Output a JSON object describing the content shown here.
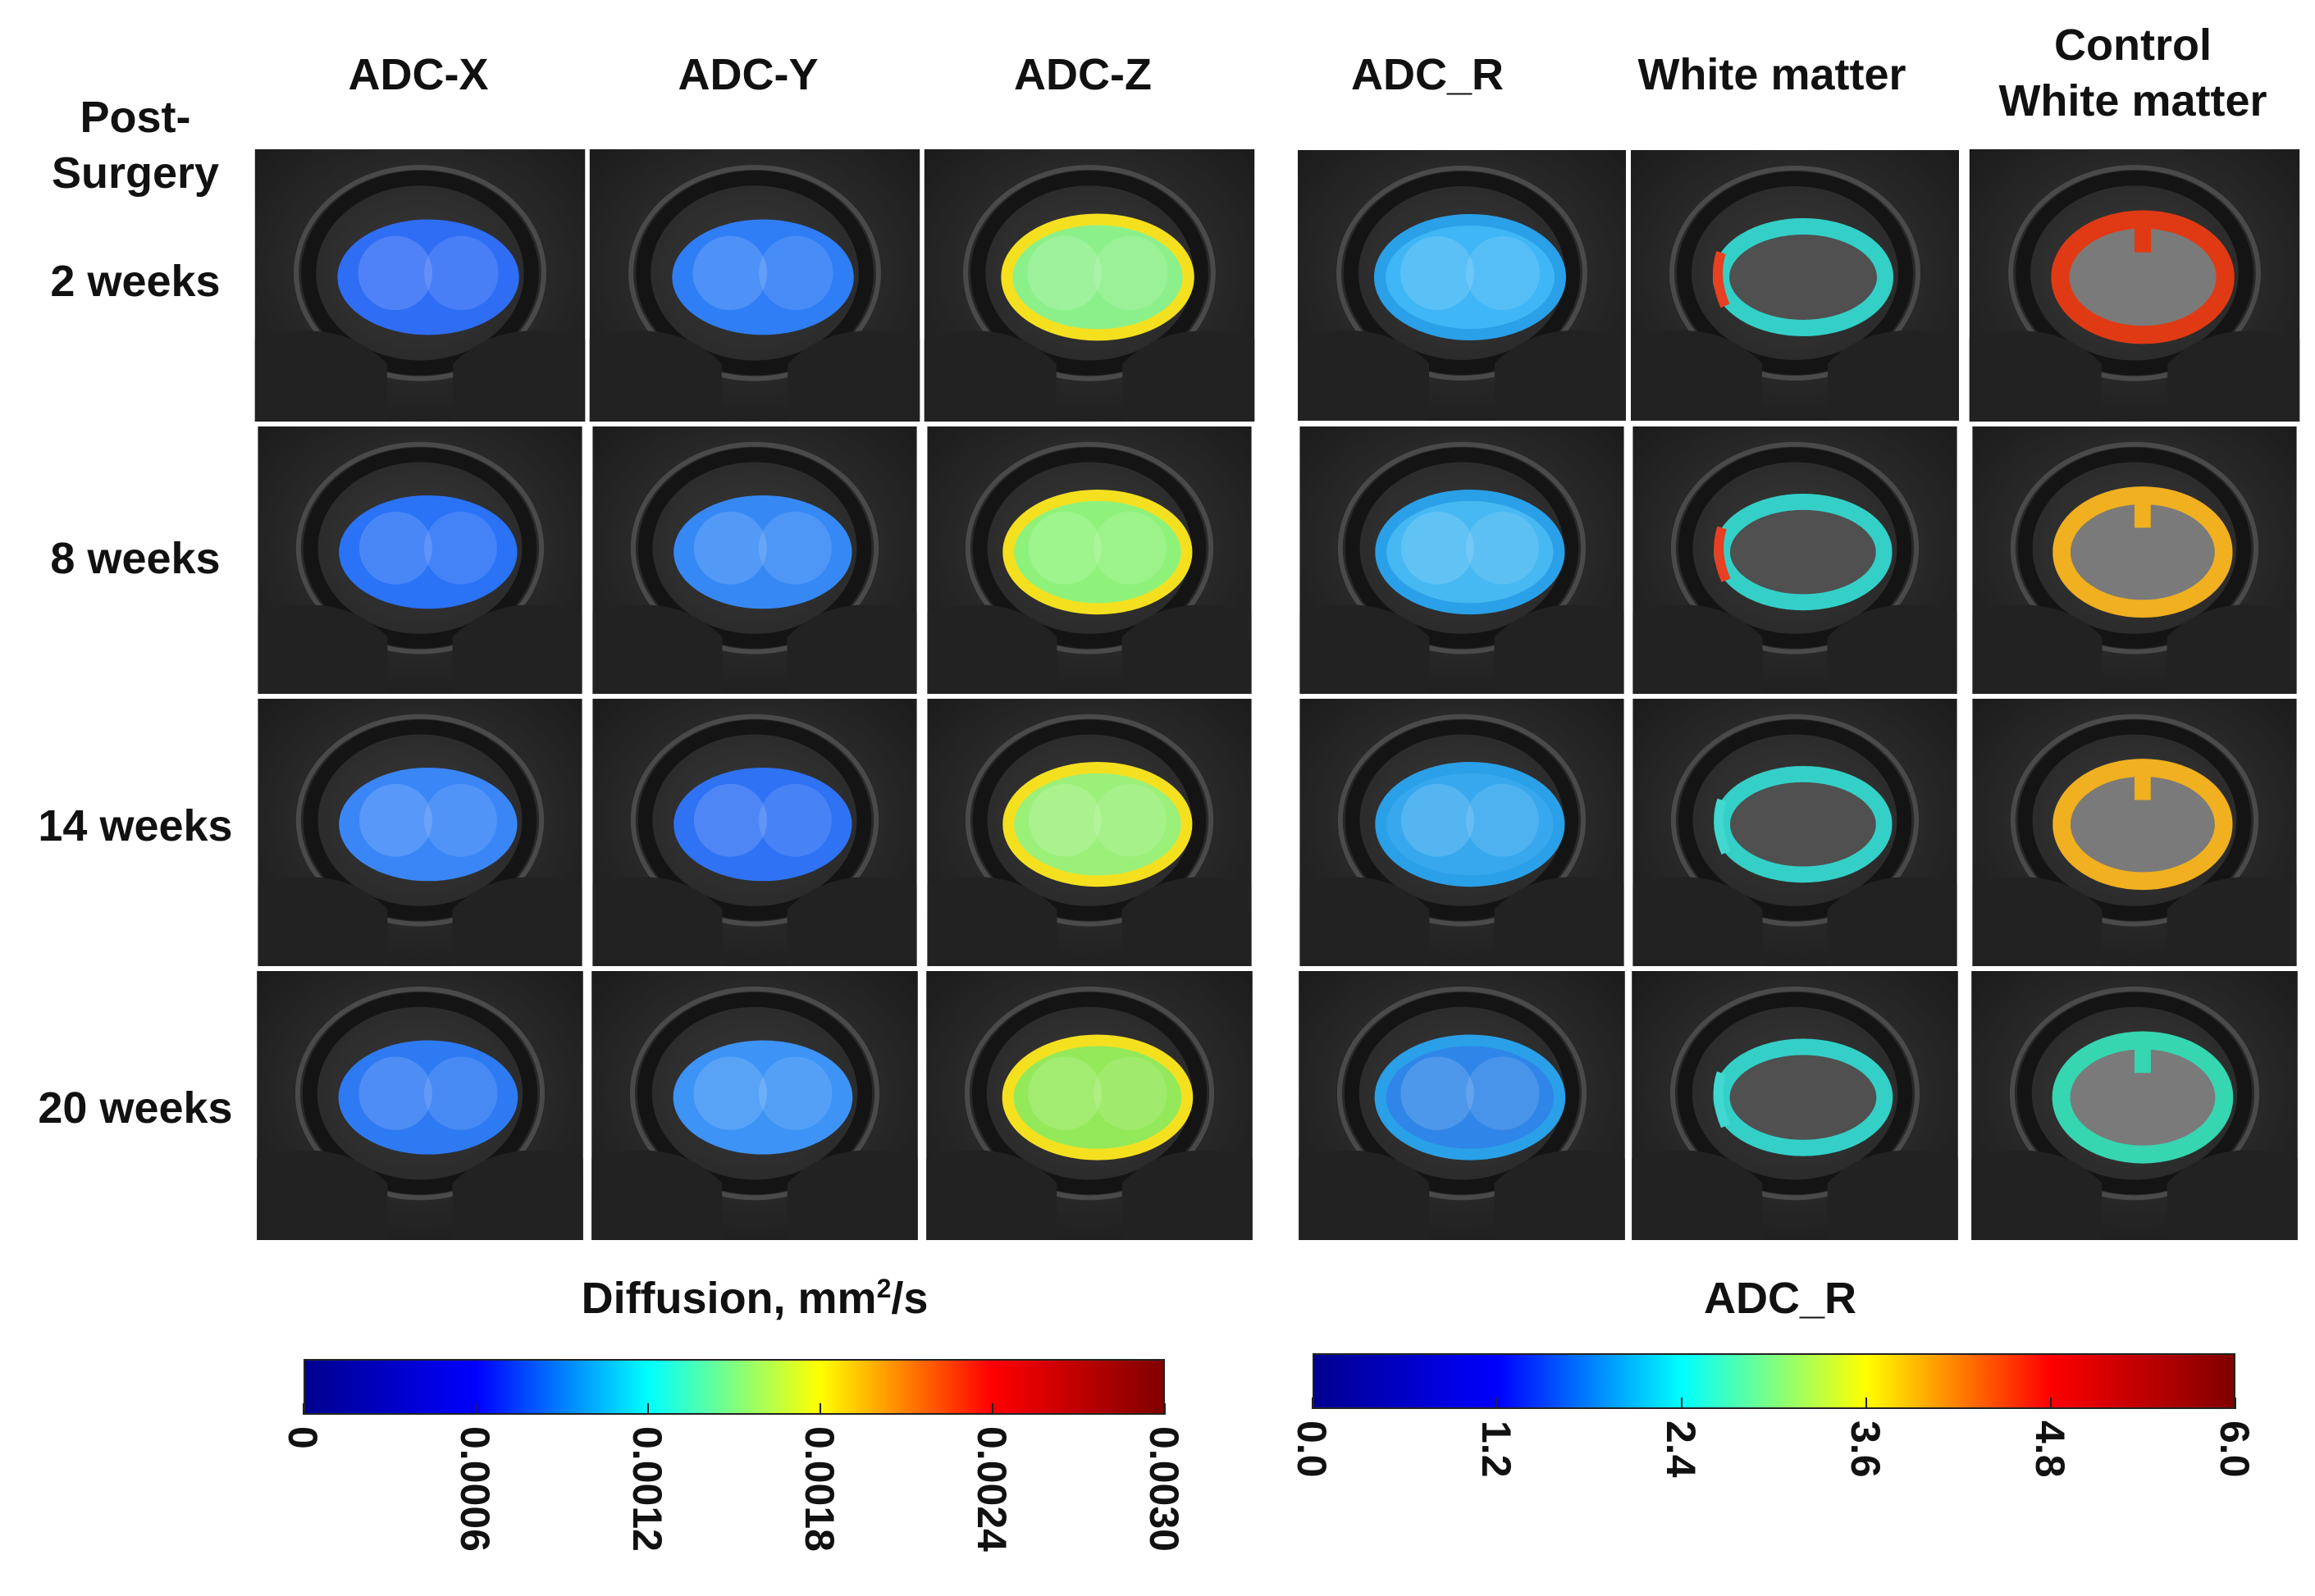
{
  "row_header": [
    "Post-",
    "Surgery"
  ],
  "left_columns": [
    "ADC-X",
    "ADC-Y",
    "ADC-Z"
  ],
  "right_columns": [
    "ADC_R",
    "White matter"
  ],
  "control_column": [
    "Control",
    "White matter"
  ],
  "rows": [
    "2 weeks",
    "8 weeks",
    "14 weeks",
    "20 weeks"
  ],
  "colorbar_left": {
    "title_main": "Diffusion, mm",
    "title_sup": "2",
    "title_tail": "/s",
    "ticks": [
      "0",
      "0.0006",
      "0.0012",
      "0.0018",
      "0.0024",
      "0.0030"
    ]
  },
  "colorbar_right": {
    "title": "ADC_R",
    "ticks": [
      "0.0",
      "1.2",
      "2.4",
      "3.6",
      "4.8",
      "6.0"
    ]
  },
  "colormap": [
    "#00008f",
    "#0000ff",
    "#00ffff",
    "#ffff00",
    "#ff0000",
    "#800000"
  ],
  "map_fill": {
    "adc_x": [
      "#2f6df5",
      "#2a72f6",
      "#3a86f7",
      "#2e7af2"
    ],
    "adc_y": [
      "#2f7ef6",
      "#3689f5",
      "#2f72f4",
      "#3d93f6"
    ],
    "adc_z": [
      "#8cf08a",
      "#8ef27a",
      "#9af079",
      "#93e95a"
    ],
    "adc_r": [
      "#3fb6f5",
      "#46b8f2",
      "#37a8ee",
      "#2f86e8"
    ]
  }
}
